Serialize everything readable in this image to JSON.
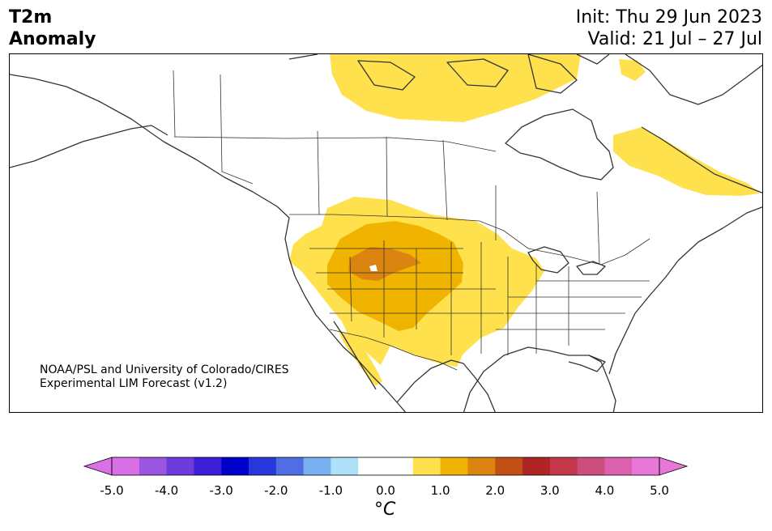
{
  "header": {
    "title_line1": "T2m",
    "title_line2": "Anomaly",
    "init": "Init: Thu 29 Jun 2023",
    "valid": "Valid: 21 Jul – 27 Jul"
  },
  "credit": {
    "line1": "NOAA/PSL and University of Colorado/CIRES",
    "line2": "Experimental LIM Forecast (v1.2)"
  },
  "colorbar": {
    "unit": "°C",
    "ticks": [
      "-5.0",
      "-4.0",
      "-3.0",
      "-2.0",
      "-1.0",
      "0.0",
      "1.0",
      "2.0",
      "3.0",
      "4.0",
      "5.0"
    ],
    "colors": [
      "#d970e6",
      "#9b55e0",
      "#6b3bdc",
      "#3b1fd6",
      "#0000cc",
      "#2638dc",
      "#4f6ee4",
      "#78b0f0",
      "#aee0fa",
      "#ffffff",
      "#ffffff",
      "#ffe14d",
      "#f0b400",
      "#dc8410",
      "#c25016",
      "#b02424",
      "#c23848",
      "#cc4e7c",
      "#dc62b0",
      "#e878d8"
    ],
    "under_color": "#d970e6",
    "over_color": "#e878d8"
  },
  "map": {
    "colors": {
      "land_line": "#333333",
      "anom_1": "#ffe14d",
      "anom_2": "#f0b400",
      "anom_3": "#dc8410"
    }
  }
}
